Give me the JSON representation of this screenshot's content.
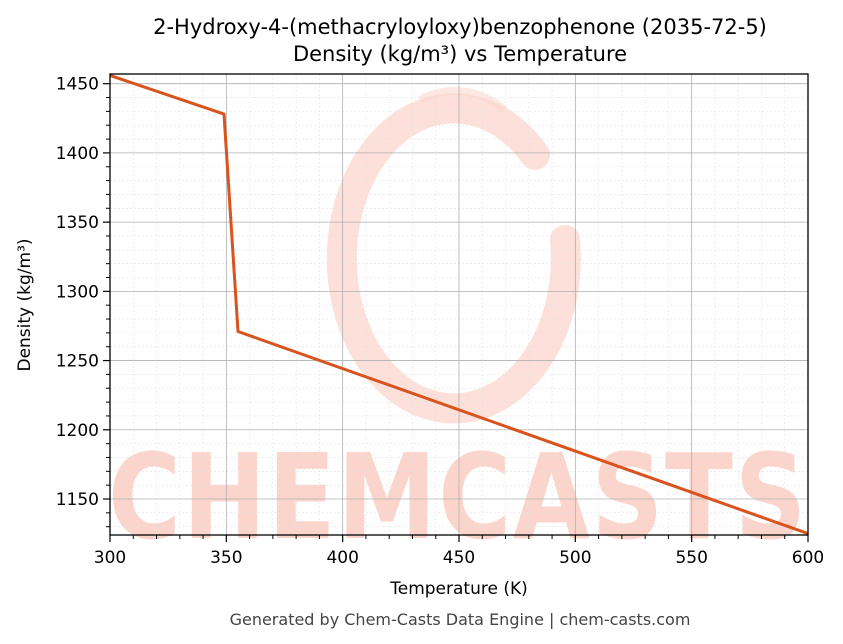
{
  "chart_data": {
    "type": "line",
    "title": "2-Hydroxy-4-(methacryloyloxy)benzophenone (2035-72-5)",
    "subtitle": "Density (kg/m³) vs Temperature",
    "xlabel": "Temperature (K)",
    "ylabel": "Density (kg/m³)",
    "xlim": [
      300,
      600
    ],
    "ylim": [
      1124,
      1457
    ],
    "xticks": [
      300,
      350,
      400,
      450,
      500,
      550,
      600
    ],
    "yticks": [
      1150,
      1200,
      1250,
      1300,
      1350,
      1400,
      1450
    ],
    "grid": true,
    "series": [
      {
        "color": "#d9531e",
        "x": [
          300,
          349,
          355,
          600
        ],
        "y": [
          1456,
          1428,
          1271,
          1125
        ]
      }
    ]
  },
  "watermark": {
    "text": "CHEMCASTS",
    "color": "#fbd5cc"
  },
  "footer": "Generated by Chem-Casts Data Engine | chem-casts.com"
}
